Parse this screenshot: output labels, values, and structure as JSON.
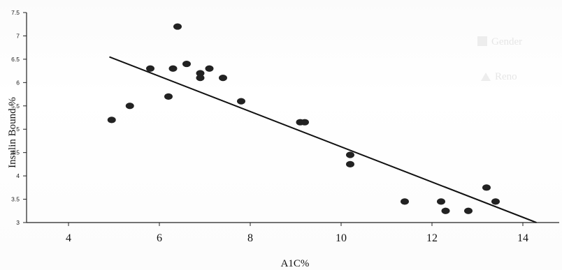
{
  "chart_data": {
    "type": "scatter",
    "xlabel": "A1C%",
    "ylabel": "Insulin Bound %",
    "xlim": [
      4,
      15
    ],
    "ylim": [
      3,
      7.5
    ],
    "x_ticks": [
      "4",
      "6",
      "8",
      "10",
      "12",
      "14"
    ],
    "y_ticks": [
      "3",
      "3.5",
      "4",
      "4.5",
      "5",
      "5.5",
      "6",
      "6.5",
      "7",
      "7.5"
    ],
    "grid": false,
    "points": [
      {
        "x": 4.95,
        "y": 5.2
      },
      {
        "x": 5.35,
        "y": 5.5
      },
      {
        "x": 5.8,
        "y": 6.3
      },
      {
        "x": 6.2,
        "y": 5.7
      },
      {
        "x": 6.3,
        "y": 6.3
      },
      {
        "x": 6.4,
        "y": 7.2
      },
      {
        "x": 6.6,
        "y": 6.4
      },
      {
        "x": 6.9,
        "y": 6.2
      },
      {
        "x": 6.9,
        "y": 6.1
      },
      {
        "x": 7.1,
        "y": 6.3
      },
      {
        "x": 7.4,
        "y": 6.1
      },
      {
        "x": 7.8,
        "y": 5.6
      },
      {
        "x": 9.1,
        "y": 5.15
      },
      {
        "x": 9.2,
        "y": 5.15
      },
      {
        "x": 10.2,
        "y": 4.45
      },
      {
        "x": 10.2,
        "y": 4.25
      },
      {
        "x": 11.4,
        "y": 3.45
      },
      {
        "x": 12.2,
        "y": 3.45
      },
      {
        "x": 12.3,
        "y": 3.25
      },
      {
        "x": 12.8,
        "y": 3.25
      },
      {
        "x": 13.2,
        "y": 3.75
      },
      {
        "x": 13.4,
        "y": 3.45
      }
    ],
    "trendline": {
      "x1": 4.9,
      "y1": 6.55,
      "x2": 14.3,
      "y2": 3.0
    },
    "colors": {
      "points": "#222222",
      "line": "#111111",
      "axis": "#222222"
    }
  },
  "legend_ghost": {
    "items": [
      "Gender",
      "Reno"
    ]
  }
}
